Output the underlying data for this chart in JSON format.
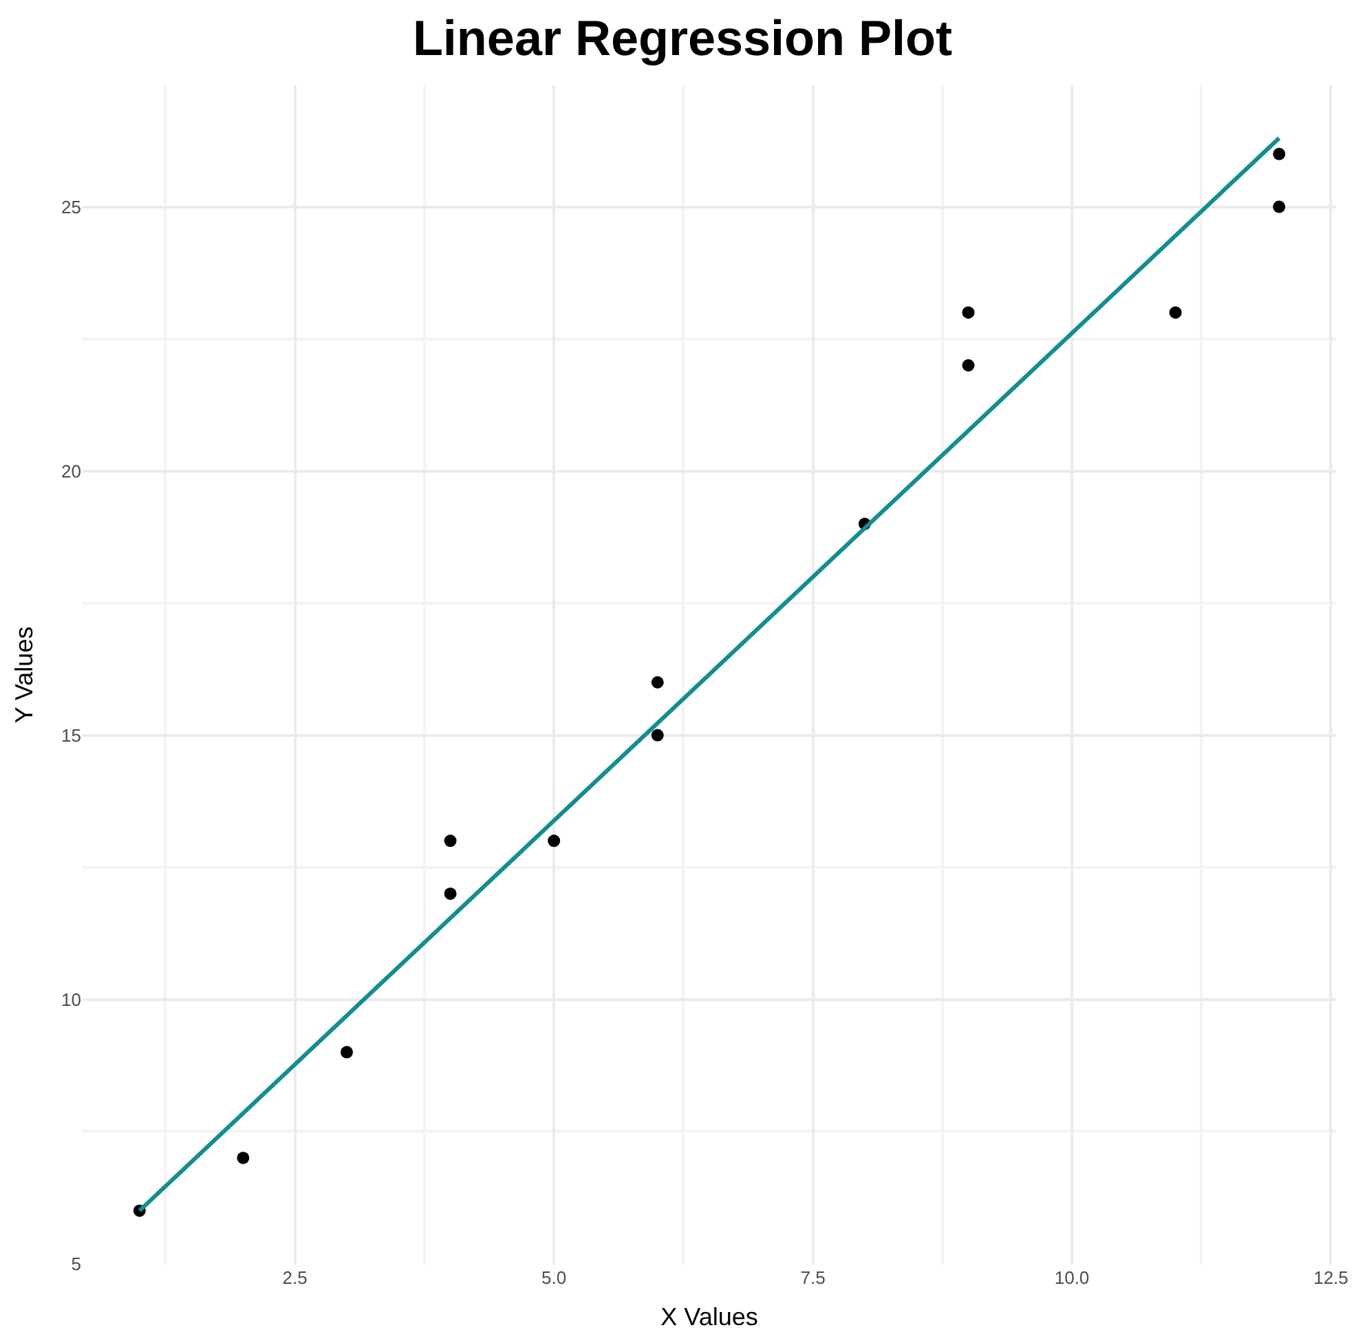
{
  "chart_data": {
    "type": "scatter",
    "title": "Linear Regression Plot",
    "xlabel": "X Values",
    "ylabel": "Y Values",
    "xlim": [
      0.45,
      12.55
    ],
    "ylim": [
      4.98,
      27.3
    ],
    "xticks": [
      2.5,
      {
        "value": 5,
        "label": "5.0"
      },
      7.5,
      {
        "value": 10,
        "label": "10.0"
      },
      12.5
    ],
    "yticks": [
      5,
      10,
      15,
      20,
      25
    ],
    "grid": true,
    "marker": "circle",
    "series": [
      {
        "color": "#000000",
        "x": [
          1,
          2,
          3,
          4,
          4,
          5,
          6,
          6,
          8,
          9,
          9,
          11,
          12,
          12
        ],
        "values": [
          6,
          7,
          9,
          12,
          13,
          13,
          15,
          16,
          19,
          22,
          23,
          23,
          25,
          26
        ]
      },
      {
        "type": "line",
        "color": "#138d90",
        "x": [
          1,
          12
        ],
        "values": [
          6.0,
          26.3
        ],
        "marker": "none",
        "line_style": "solid"
      }
    ]
  }
}
